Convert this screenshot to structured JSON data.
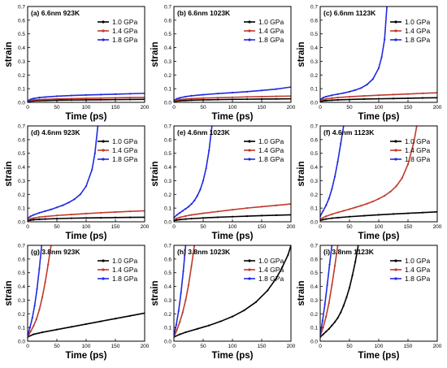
{
  "figure": {
    "xlabel": "Time (ps)",
    "ylabel": "strain"
  },
  "series_colors": {
    "1.0 GPa": "#000000",
    "1.4 GPa": "#c0392b",
    "1.8 GPa": "#1f2be0"
  },
  "chart_data": [
    {
      "type": "line",
      "panel": "a",
      "title": "(a) 6.6nm  923K",
      "xlabel": "Time (ps)",
      "ylabel": "strain",
      "xlim": [
        0,
        200
      ],
      "ylim": [
        0,
        0.7
      ],
      "xticks": [
        0,
        50,
        100,
        150,
        200
      ],
      "yticks": [
        0,
        0.1,
        0.2,
        0.3,
        0.4,
        0.5,
        0.6,
        0.7
      ],
      "legend_position": "top-right",
      "series": [
        {
          "name": "1.0 GPa",
          "x": [
            0,
            5,
            10,
            20,
            30,
            50,
            75,
            100,
            125,
            150,
            175,
            200
          ],
          "y": [
            0.005,
            0.009,
            0.011,
            0.013,
            0.014,
            0.016,
            0.017,
            0.018,
            0.019,
            0.02,
            0.021,
            0.022
          ]
        },
        {
          "name": "1.4 GPa",
          "x": [
            0,
            5,
            10,
            20,
            30,
            50,
            75,
            100,
            125,
            150,
            175,
            200
          ],
          "y": [
            0.008,
            0.014,
            0.017,
            0.02,
            0.022,
            0.025,
            0.027,
            0.029,
            0.031,
            0.033,
            0.035,
            0.036
          ]
        },
        {
          "name": "1.8 GPa",
          "x": [
            0,
            5,
            10,
            20,
            30,
            50,
            75,
            100,
            125,
            150,
            175,
            200
          ],
          "y": [
            0.012,
            0.022,
            0.028,
            0.035,
            0.039,
            0.045,
            0.05,
            0.054,
            0.057,
            0.06,
            0.063,
            0.066
          ]
        }
      ]
    },
    {
      "type": "line",
      "panel": "b",
      "title": "(b) 6.6nm  1023K",
      "xlabel": "Time (ps)",
      "ylabel": "strain",
      "xlim": [
        0,
        200
      ],
      "ylim": [
        0,
        0.7
      ],
      "xticks": [
        0,
        50,
        100,
        150,
        200
      ],
      "yticks": [
        0,
        0.1,
        0.2,
        0.3,
        0.4,
        0.5,
        0.6,
        0.7
      ],
      "legend_position": "top-right",
      "series": [
        {
          "name": "1.0 GPa",
          "x": [
            0,
            5,
            10,
            20,
            30,
            50,
            75,
            100,
            125,
            150,
            175,
            200
          ],
          "y": [
            0.006,
            0.01,
            0.012,
            0.014,
            0.016,
            0.018,
            0.02,
            0.022,
            0.023,
            0.024,
            0.025,
            0.026
          ]
        },
        {
          "name": "1.4 GPa",
          "x": [
            0,
            5,
            10,
            20,
            30,
            50,
            75,
            100,
            125,
            150,
            175,
            200
          ],
          "y": [
            0.01,
            0.016,
            0.02,
            0.024,
            0.027,
            0.031,
            0.034,
            0.037,
            0.04,
            0.042,
            0.044,
            0.046
          ]
        },
        {
          "name": "1.8 GPa",
          "x": [
            0,
            5,
            10,
            20,
            30,
            50,
            75,
            100,
            125,
            150,
            175,
            200
          ],
          "y": [
            0.015,
            0.026,
            0.033,
            0.042,
            0.048,
            0.056,
            0.064,
            0.071,
            0.078,
            0.087,
            0.097,
            0.112
          ]
        }
      ]
    },
    {
      "type": "line",
      "panel": "c",
      "title": "(c) 6.6nm  1123K",
      "xlabel": "Time (ps)",
      "ylabel": "strain",
      "xlim": [
        0,
        200
      ],
      "ylim": [
        0,
        0.7
      ],
      "xticks": [
        0,
        50,
        100,
        150,
        200
      ],
      "yticks": [
        0,
        0.1,
        0.2,
        0.3,
        0.4,
        0.5,
        0.6,
        0.7
      ],
      "legend_position": "top-right",
      "series": [
        {
          "name": "1.0 GPa",
          "x": [
            0,
            5,
            10,
            20,
            30,
            50,
            75,
            100,
            125,
            150,
            175,
            200
          ],
          "y": [
            0.006,
            0.011,
            0.013,
            0.016,
            0.018,
            0.021,
            0.024,
            0.026,
            0.028,
            0.03,
            0.032,
            0.034
          ]
        },
        {
          "name": "1.4 GPa",
          "x": [
            0,
            5,
            10,
            20,
            30,
            50,
            75,
            100,
            125,
            150,
            175,
            200
          ],
          "y": [
            0.012,
            0.02,
            0.025,
            0.031,
            0.035,
            0.041,
            0.047,
            0.052,
            0.057,
            0.061,
            0.066,
            0.07
          ]
        },
        {
          "name": "1.8 GPa",
          "x": [
            0,
            5,
            10,
            20,
            30,
            40,
            50,
            60,
            70,
            80,
            90,
            100,
            105,
            110,
            114
          ],
          "y": [
            0.02,
            0.034,
            0.042,
            0.052,
            0.06,
            0.068,
            0.078,
            0.09,
            0.105,
            0.13,
            0.17,
            0.25,
            0.33,
            0.46,
            0.7
          ]
        }
      ]
    },
    {
      "type": "line",
      "panel": "d",
      "title": "(d) 4.6nm  923K",
      "xlabel": "Time (ps)",
      "ylabel": "strain",
      "xlim": [
        0,
        200
      ],
      "ylim": [
        0,
        0.7
      ],
      "xticks": [
        0,
        50,
        100,
        150,
        200
      ],
      "yticks": [
        0,
        0.1,
        0.2,
        0.3,
        0.4,
        0.5,
        0.6,
        0.7
      ],
      "legend_position": "top-right",
      "series": [
        {
          "name": "1.0 GPa",
          "x": [
            0,
            5,
            10,
            20,
            30,
            50,
            75,
            100,
            125,
            150,
            175,
            200
          ],
          "y": [
            0.008,
            0.012,
            0.015,
            0.018,
            0.02,
            0.023,
            0.026,
            0.028,
            0.029,
            0.031,
            0.032,
            0.033
          ]
        },
        {
          "name": "1.4 GPa",
          "x": [
            0,
            5,
            10,
            20,
            30,
            50,
            75,
            100,
            125,
            150,
            175,
            200
          ],
          "y": [
            0.014,
            0.022,
            0.027,
            0.034,
            0.038,
            0.046,
            0.053,
            0.06,
            0.066,
            0.071,
            0.076,
            0.08
          ]
        },
        {
          "name": "1.8 GPa",
          "x": [
            0,
            5,
            10,
            20,
            30,
            40,
            50,
            60,
            70,
            80,
            90,
            100,
            110,
            115,
            120
          ],
          "y": [
            0.025,
            0.04,
            0.05,
            0.065,
            0.078,
            0.09,
            0.105,
            0.12,
            0.14,
            0.165,
            0.2,
            0.26,
            0.38,
            0.5,
            0.7
          ]
        }
      ]
    },
    {
      "type": "line",
      "panel": "e",
      "title": "(e) 4.6nm  1023K",
      "xlabel": "Time (ps)",
      "ylabel": "strain",
      "xlim": [
        0,
        200
      ],
      "ylim": [
        0,
        0.7
      ],
      "xticks": [
        0,
        50,
        100,
        150,
        200
      ],
      "yticks": [
        0,
        0.1,
        0.2,
        0.3,
        0.4,
        0.5,
        0.6,
        0.7
      ],
      "legend_position": "top-right",
      "series": [
        {
          "name": "1.0 GPa",
          "x": [
            0,
            5,
            10,
            20,
            30,
            50,
            75,
            100,
            125,
            150,
            175,
            200
          ],
          "y": [
            0.008,
            0.013,
            0.016,
            0.02,
            0.023,
            0.028,
            0.033,
            0.037,
            0.041,
            0.045,
            0.048,
            0.051
          ]
        },
        {
          "name": "1.4 GPa",
          "x": [
            0,
            5,
            10,
            20,
            30,
            50,
            75,
            100,
            125,
            150,
            175,
            200
          ],
          "y": [
            0.015,
            0.025,
            0.032,
            0.042,
            0.05,
            0.062,
            0.075,
            0.088,
            0.1,
            0.11,
            0.12,
            0.13
          ]
        },
        {
          "name": "1.8 GPa",
          "x": [
            0,
            5,
            10,
            15,
            20,
            25,
            30,
            35,
            40,
            45,
            50,
            55,
            60,
            65
          ],
          "y": [
            0.03,
            0.05,
            0.065,
            0.08,
            0.095,
            0.11,
            0.13,
            0.155,
            0.19,
            0.235,
            0.3,
            0.39,
            0.52,
            0.7
          ]
        }
      ]
    },
    {
      "type": "line",
      "panel": "f",
      "title": "(f) 4.6nm  1123K",
      "xlabel": "Time (ps)",
      "ylabel": "strain",
      "xlim": [
        0,
        200
      ],
      "ylim": [
        0,
        0.7
      ],
      "xticks": [
        0,
        50,
        100,
        150,
        200
      ],
      "yticks": [
        0,
        0.1,
        0.2,
        0.3,
        0.4,
        0.5,
        0.6,
        0.7
      ],
      "legend_position": "top-right",
      "series": [
        {
          "name": "1.0 GPa",
          "x": [
            0,
            5,
            10,
            20,
            30,
            50,
            75,
            100,
            125,
            150,
            175,
            200
          ],
          "y": [
            0.01,
            0.016,
            0.02,
            0.026,
            0.03,
            0.037,
            0.044,
            0.051,
            0.057,
            0.062,
            0.067,
            0.072
          ]
        },
        {
          "name": "1.4 GPa",
          "x": [
            0,
            10,
            20,
            30,
            40,
            50,
            60,
            70,
            80,
            90,
            100,
            110,
            120,
            130,
            140,
            150,
            160,
            165
          ],
          "y": [
            0.02,
            0.04,
            0.055,
            0.068,
            0.08,
            0.092,
            0.105,
            0.118,
            0.132,
            0.148,
            0.168,
            0.19,
            0.22,
            0.26,
            0.32,
            0.42,
            0.58,
            0.7
          ]
        },
        {
          "name": "1.8 GPa",
          "x": [
            0,
            5,
            10,
            15,
            20,
            25,
            30,
            35,
            40
          ],
          "y": [
            0.04,
            0.08,
            0.12,
            0.17,
            0.24,
            0.33,
            0.44,
            0.57,
            0.7
          ]
        }
      ]
    },
    {
      "type": "line",
      "panel": "g",
      "title": "(g) 3.8nm  923K",
      "xlabel": "Time (ps)",
      "ylabel": "strain",
      "xlim": [
        0,
        200
      ],
      "ylim": [
        0,
        0.7
      ],
      "xticks": [
        0,
        50,
        100,
        150,
        200
      ],
      "yticks": [
        0,
        0.1,
        0.2,
        0.3,
        0.4,
        0.5,
        0.6,
        0.7
      ],
      "legend_position": "top-right",
      "series": [
        {
          "name": "1.0 GPa",
          "x": [
            0,
            10,
            25,
            50,
            75,
            100,
            125,
            150,
            175,
            200
          ],
          "y": [
            0.03,
            0.05,
            0.065,
            0.085,
            0.105,
            0.125,
            0.145,
            0.165,
            0.185,
            0.205
          ]
        },
        {
          "name": "1.4 GPa",
          "x": [
            0,
            5,
            10,
            15,
            20,
            25,
            30,
            35,
            40
          ],
          "y": [
            0.03,
            0.07,
            0.11,
            0.16,
            0.23,
            0.32,
            0.43,
            0.56,
            0.7
          ]
        },
        {
          "name": "1.8 GPa",
          "x": [
            0,
            4,
            8,
            12,
            16,
            20,
            24
          ],
          "y": [
            0.04,
            0.1,
            0.17,
            0.26,
            0.38,
            0.53,
            0.7
          ]
        }
      ]
    },
    {
      "type": "line",
      "panel": "h",
      "title": "(h) 3.8nm  1023K",
      "xlabel": "Time (ps)",
      "ylabel": "strain",
      "xlim": [
        0,
        200
      ],
      "ylim": [
        0,
        0.7
      ],
      "xticks": [
        0,
        50,
        100,
        150,
        200
      ],
      "yticks": [
        0,
        0.1,
        0.2,
        0.3,
        0.4,
        0.5,
        0.6,
        0.7
      ],
      "legend_position": "top-right",
      "series": [
        {
          "name": "1.0 GPa",
          "x": [
            0,
            10,
            20,
            40,
            60,
            80,
            100,
            120,
            140,
            160,
            175,
            185,
            195,
            200
          ],
          "y": [
            0.03,
            0.05,
            0.065,
            0.09,
            0.115,
            0.145,
            0.18,
            0.225,
            0.285,
            0.37,
            0.46,
            0.54,
            0.63,
            0.7
          ]
        },
        {
          "name": "1.4 GPa",
          "x": [
            0,
            5,
            10,
            15,
            20,
            25,
            30,
            35
          ],
          "y": [
            0.03,
            0.08,
            0.14,
            0.21,
            0.3,
            0.41,
            0.55,
            0.7
          ]
        },
        {
          "name": "1.8 GPa",
          "x": [
            0,
            4,
            8,
            12,
            16,
            20
          ],
          "y": [
            0.04,
            0.12,
            0.22,
            0.35,
            0.51,
            0.7
          ]
        }
      ]
    },
    {
      "type": "line",
      "panel": "i",
      "title": "(i) 3.8nm  1123K",
      "xlabel": "Time (ps)",
      "ylabel": "strain",
      "xlim": [
        0,
        200
      ],
      "ylim": [
        0,
        0.7
      ],
      "xticks": [
        0,
        50,
        100,
        150,
        200
      ],
      "yticks": [
        0,
        0.1,
        0.2,
        0.3,
        0.4,
        0.5,
        0.6,
        0.7
      ],
      "legend_position": "top-right",
      "series": [
        {
          "name": "1.0 GPa",
          "x": [
            0,
            5,
            10,
            15,
            20,
            25,
            30,
            35,
            40,
            45,
            50,
            55,
            60,
            65
          ],
          "y": [
            0.03,
            0.05,
            0.07,
            0.09,
            0.115,
            0.14,
            0.17,
            0.21,
            0.26,
            0.32,
            0.39,
            0.48,
            0.58,
            0.7
          ]
        },
        {
          "name": "1.4 GPa",
          "x": [
            0,
            5,
            10,
            15,
            20,
            25,
            30
          ],
          "y": [
            0.04,
            0.1,
            0.18,
            0.28,
            0.41,
            0.55,
            0.7
          ]
        },
        {
          "name": "1.8 GPa",
          "x": [
            0,
            4,
            8,
            12,
            16,
            20
          ],
          "y": [
            0.05,
            0.15,
            0.27,
            0.41,
            0.56,
            0.7
          ]
        }
      ]
    }
  ]
}
